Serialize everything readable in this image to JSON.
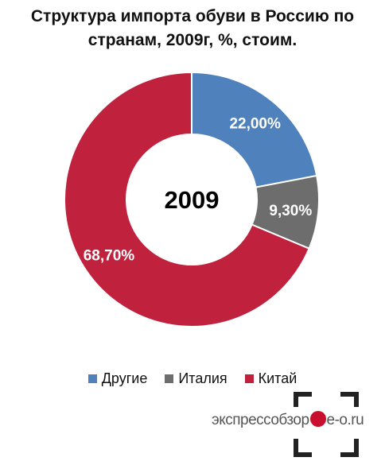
{
  "chart_data": {
    "type": "donut",
    "title_lines": [
      "Структура импорта обуви в Россию по",
      "странам, 2009г, %, стоим."
    ],
    "center_label": "2009",
    "slices": [
      {
        "name": "Другие",
        "value": 22.0,
        "label": "22,00%",
        "color": "#4f81bd"
      },
      {
        "name": "Италия",
        "value": 9.3,
        "label": "9,30%",
        "color": "#6d6d6d"
      },
      {
        "name": "Китай",
        "value": 68.7,
        "label": "68,70%",
        "color": "#c0213d"
      }
    ],
    "legend_position": "bottom"
  },
  "watermark": {
    "left_text": "экспрессобзор",
    "right_text": "e-o.ru"
  }
}
